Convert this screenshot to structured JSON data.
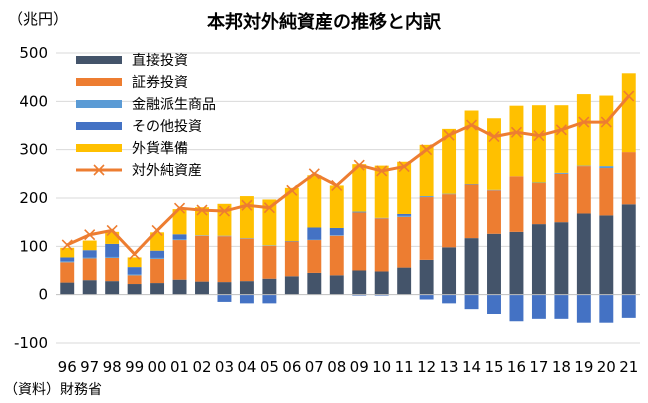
{
  "chart_data": {
    "type": "bar",
    "title": "本邦対外純資産の推移と内訳",
    "unit_label": "（兆円）",
    "source": "（資料）財務省",
    "ylim": [
      -100,
      500
    ],
    "yticks": [
      "-100",
      "0",
      "100",
      "200",
      "300",
      "400",
      "500"
    ],
    "ytick_values": [
      -100,
      0,
      100,
      200,
      300,
      400,
      500
    ],
    "categories": [
      "96",
      "97",
      "98",
      "99",
      "00",
      "01",
      "02",
      "03",
      "04",
      "05",
      "06",
      "07",
      "08",
      "09",
      "10",
      "11",
      "12",
      "13",
      "14",
      "15",
      "16",
      "17",
      "18",
      "19",
      "20",
      "21"
    ],
    "stacked": true,
    "legend_position": "top-left",
    "series": [
      {
        "name": "直接投資",
        "color": "#44546a",
        "values": [
          25,
          30,
          28,
          22,
          24,
          31,
          27,
          26,
          28,
          33,
          38,
          45,
          40,
          50,
          48,
          56,
          72,
          98,
          117,
          126,
          130,
          146,
          150,
          168,
          164,
          187
        ]
      },
      {
        "name": "証券投資",
        "color": "#ed7d31",
        "values": [
          42,
          45,
          48,
          18,
          50,
          82,
          95,
          95,
          88,
          68,
          72,
          68,
          82,
          120,
          110,
          105,
          130,
          110,
          111,
          90,
          115,
          85,
          100,
          98,
          98,
          108
        ]
      },
      {
        "name": "金融派生商品",
        "color": "#5b9bd5",
        "values": [
          2,
          2,
          2,
          2,
          2,
          2,
          1,
          1,
          1,
          1,
          1,
          1,
          1,
          2,
          1,
          2,
          2,
          1,
          1,
          1,
          0,
          1,
          2,
          1,
          4,
          0
        ]
      },
      {
        "name": "その他投資",
        "color": "#4472c4",
        "values": [
          8,
          15,
          27,
          15,
          15,
          10,
          0,
          -15,
          -18,
          -18,
          0,
          25,
          15,
          -2,
          -2,
          4,
          -10,
          -18,
          -30,
          -40,
          -55,
          -50,
          -50,
          -58,
          -58,
          -48
        ]
      },
      {
        "name": "外貨準備",
        "color": "#ffc000",
        "values": [
          20,
          20,
          25,
          20,
          38,
          52,
          58,
          66,
          87,
          95,
          110,
          108,
          88,
          98,
          108,
          108,
          106,
          134,
          152,
          148,
          146,
          160,
          140,
          148,
          146,
          163
        ]
      },
      {
        "name": "対外純資産",
        "color": "#ed7d31",
        "type": "line",
        "marker": "x",
        "values": [
          103,
          124,
          133,
          84,
          133,
          179,
          175,
          173,
          185,
          180,
          216,
          250,
          226,
          268,
          256,
          265,
          300,
          330,
          351,
          327,
          336,
          329,
          341,
          357,
          357,
          411
        ]
      }
    ]
  }
}
